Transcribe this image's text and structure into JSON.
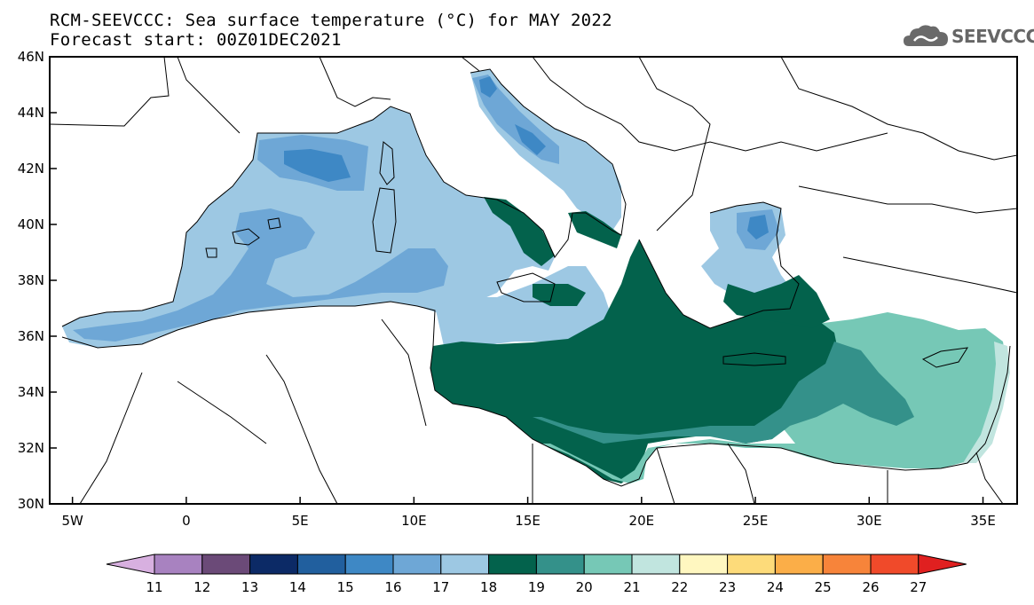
{
  "title": {
    "line1": "RCM-SEEVCCC: Sea surface temperature (°C) for MAY 2022",
    "line2": "Forecast start: 00Z01DEC2021"
  },
  "logo": {
    "text": "SEEVCCC",
    "icon": "cloud-icon"
  },
  "map": {
    "lat_range": [
      30,
      46
    ],
    "lon_range": [
      -6,
      36.5
    ],
    "y_ticks": [
      "46N",
      "44N",
      "42N",
      "40N",
      "38N",
      "36N",
      "34N",
      "32N",
      "30N"
    ],
    "x_ticks": [
      "5W",
      "0",
      "5E",
      "10E",
      "15E",
      "20E",
      "25E",
      "30E",
      "35E"
    ]
  },
  "colorbar": {
    "labels": [
      "11",
      "12",
      "13",
      "14",
      "15",
      "16",
      "17",
      "18",
      "19",
      "20",
      "21",
      "22",
      "23",
      "24",
      "25",
      "26",
      "27"
    ],
    "colors": [
      "#d8b0e0",
      "#a882c0",
      "#6b4a78",
      "#0c2a66",
      "#215f9e",
      "#3e88c5",
      "#6ea7d6",
      "#9dc8e3",
      "#03624c",
      "#34918a",
      "#76c8b6",
      "#c1e5df",
      "#fff7c0",
      "#fddb7a",
      "#fbae48",
      "#f7843a",
      "#f04a2a",
      "#e02020"
    ]
  },
  "legend_temperatures": {
    "west_med": "17-18",
    "ionian": "19",
    "levant": "20-21"
  }
}
